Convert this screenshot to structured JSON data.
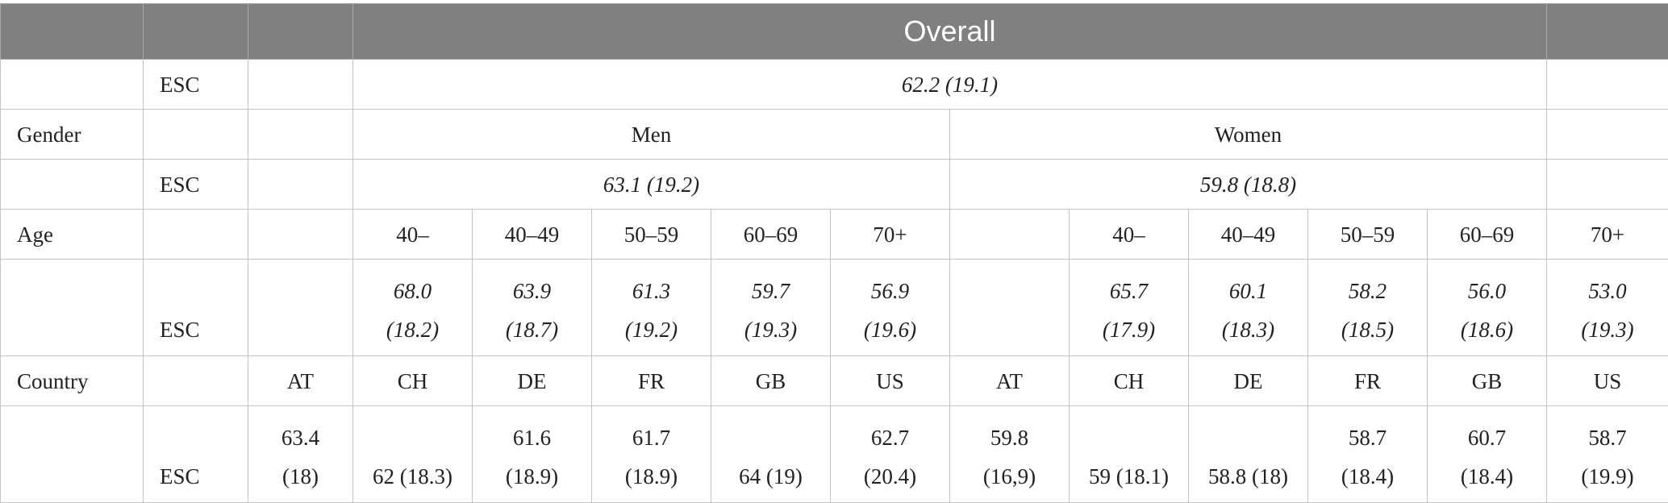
{
  "header": {
    "overall": "Overall"
  },
  "row_overall": {
    "label": "ESC",
    "value": "62.2 (19.1)"
  },
  "row_gender": {
    "label": "Gender",
    "men": "Men",
    "women": "Women"
  },
  "row_gender_esc": {
    "label": "ESC",
    "men": "63.1 (19.2)",
    "women": "59.8 (18.8)"
  },
  "row_age": {
    "label": "Age",
    "men": [
      "40–",
      "40–49",
      "50–59",
      "60–69",
      "70+"
    ],
    "women": [
      "40–",
      "40–49",
      "50–59",
      "60–69",
      "70+"
    ]
  },
  "row_age_esc": {
    "label": "ESC",
    "men": [
      {
        "mean": "68.0",
        "sd": "(18.2)"
      },
      {
        "mean": "63.9",
        "sd": "(18.7)"
      },
      {
        "mean": "61.3",
        "sd": "(19.2)"
      },
      {
        "mean": "59.7",
        "sd": "(19.3)"
      },
      {
        "mean": "56.9",
        "sd": "(19.6)"
      }
    ],
    "women": [
      {
        "mean": "65.7",
        "sd": "(17.9)"
      },
      {
        "mean": "60.1",
        "sd": "(18.3)"
      },
      {
        "mean": "58.2",
        "sd": "(18.5)"
      },
      {
        "mean": "56.0",
        "sd": "(18.6)"
      },
      {
        "mean": "53.0",
        "sd": "(19.3)"
      }
    ]
  },
  "row_country": {
    "label": "Country",
    "men": [
      "AT",
      "CH",
      "DE",
      "FR",
      "GB",
      "US"
    ],
    "women": [
      "AT",
      "CH",
      "DE",
      "FR",
      "GB",
      "US"
    ]
  },
  "row_country_esc": {
    "label": "ESC",
    "men": [
      {
        "top": "63.4",
        "bottom": "(18)"
      },
      {
        "top": "",
        "bottom": "62 (18.3)"
      },
      {
        "top": "61.6",
        "bottom": "(18.9)"
      },
      {
        "top": "61.7",
        "bottom": "(18.9)"
      },
      {
        "top": "",
        "bottom": "64 (19)"
      },
      {
        "top": "62.7",
        "bottom": "(20.4)"
      }
    ],
    "women": [
      {
        "top": "59.8",
        "bottom": "(16,9)"
      },
      {
        "top": "",
        "bottom": "59 (18.1)"
      },
      {
        "top": "",
        "bottom": "58.8 (18)"
      },
      {
        "top": "58.7",
        "bottom": "(18.4)"
      },
      {
        "top": "60.7",
        "bottom": "(18.4)"
      },
      {
        "top": "58.7",
        "bottom": "(19.9)"
      }
    ]
  }
}
